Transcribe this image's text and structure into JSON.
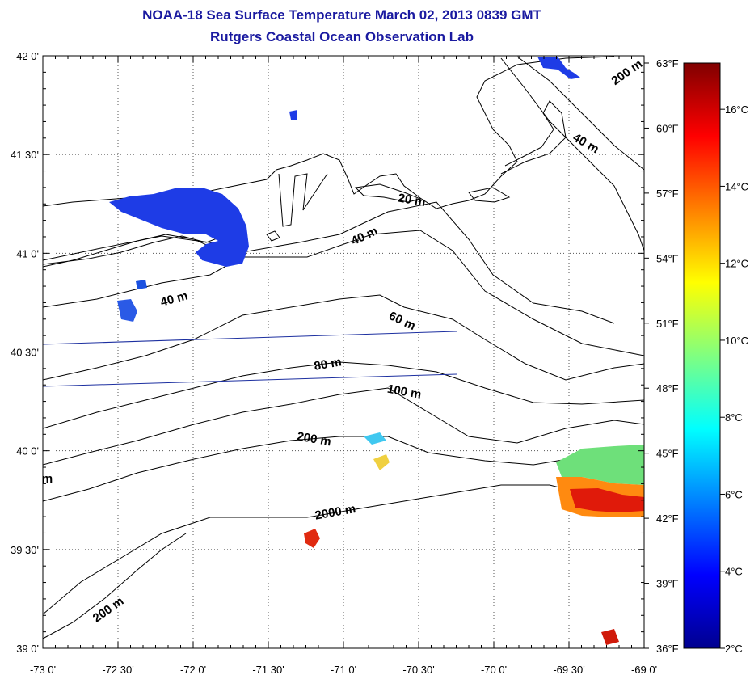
{
  "title": "NOAA-18 Sea Surface Temperature March 02, 2013 0839 GMT",
  "subtitle": "Rutgers Coastal Ocean Observation Lab",
  "map": {
    "lon_range": [
      -73.0,
      -69.0
    ],
    "lat_range": [
      39.0,
      42.0
    ],
    "grid": true,
    "lon_labels": [
      "-73 0'",
      "-72 30'",
      "-72 0'",
      "-71 30'",
      "-71 0'",
      "-70 30'",
      "-70 0'",
      "-69 30'",
      "-69 0'"
    ],
    "lat_labels": [
      "42 0'",
      "41 30'",
      "41 0'",
      "40 30'",
      "40 0'",
      "39 30'",
      "39 0'"
    ],
    "contour_labels": [
      {
        "text": "200 m",
        "lon": -69.1,
        "lat": 41.9,
        "angle": -35
      },
      {
        "text": "40 m",
        "lon": -69.4,
        "lat": 41.54,
        "angle": 30
      },
      {
        "text": "20 m",
        "lon": -70.55,
        "lat": 41.25,
        "angle": 10
      },
      {
        "text": "40 m",
        "lon": -70.85,
        "lat": 41.07,
        "angle": -25
      },
      {
        "text": "40 m",
        "lon": -72.12,
        "lat": 40.75,
        "angle": -15
      },
      {
        "text": "60 m",
        "lon": -70.62,
        "lat": 40.64,
        "angle": 25
      },
      {
        "text": "80 m",
        "lon": -71.1,
        "lat": 40.42,
        "angle": -10
      },
      {
        "text": "100 m",
        "lon": -70.6,
        "lat": 40.28,
        "angle": 10
      },
      {
        "text": "200 m",
        "lon": -71.2,
        "lat": 40.04,
        "angle": 10
      },
      {
        "text": "2000 m",
        "lon": -71.05,
        "lat": 39.67,
        "angle": -10
      },
      {
        "text": "200 m",
        "lon": -72.55,
        "lat": 39.18,
        "angle": -35
      },
      {
        "text": "m",
        "lon": -72.97,
        "lat": 39.84,
        "angle": 0
      }
    ]
  },
  "colorbar": {
    "fahrenheit_labels": [
      "63°F",
      "60°F",
      "57°F",
      "54°F",
      "51°F",
      "48°F",
      "45°F",
      "42°F",
      "39°F",
      "36°F"
    ],
    "celsius_labels": [
      "16°C",
      "14°C",
      "12°C",
      "10°C",
      "8°C",
      "6°C",
      "4°C",
      "2°C"
    ],
    "range_c": [
      2,
      17.2
    ],
    "colors": [
      "#00008f",
      "#0000ff",
      "#0080ff",
      "#00ffff",
      "#80ff80",
      "#ffff00",
      "#ff8000",
      "#ff0000",
      "#800000"
    ]
  }
}
